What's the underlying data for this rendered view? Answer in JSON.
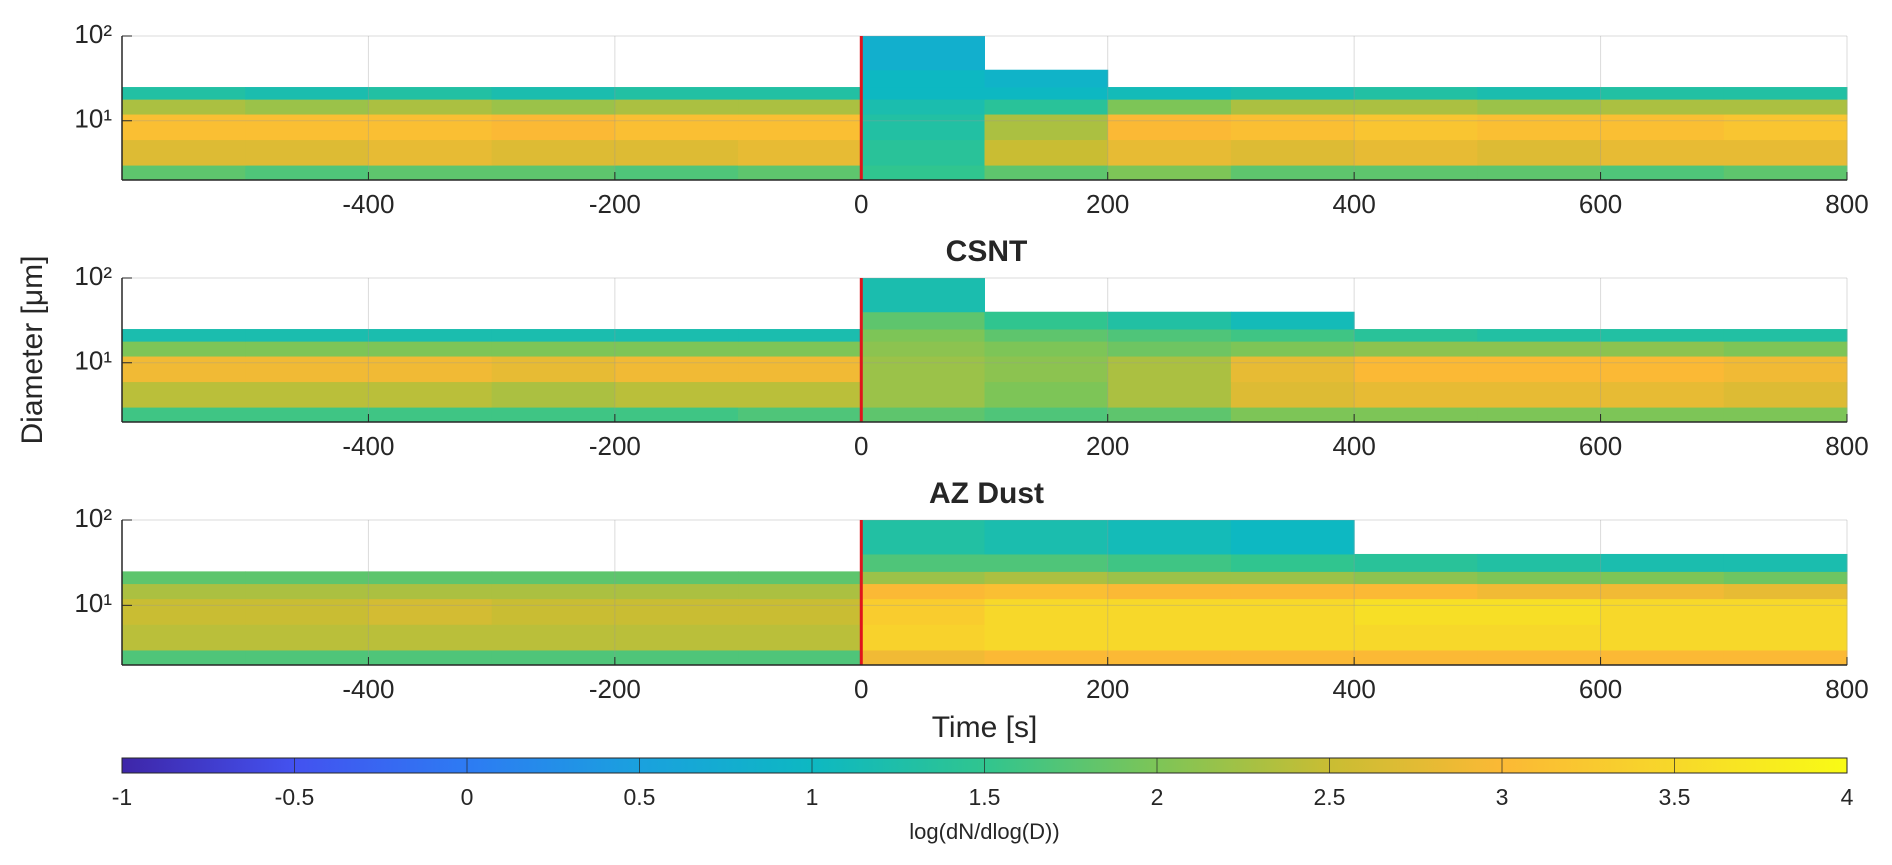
{
  "ylabel": "Diameter  [μm]",
  "colorbar": {
    "clim": [
      -1,
      4
    ],
    "ticks": [
      -1,
      -0.5,
      0,
      0.5,
      1,
      1.5,
      2,
      2.5,
      3,
      3.5,
      4
    ],
    "label": "log(dN/dlog(D))",
    "colors": [
      "#3e26a8",
      "#4352f0",
      "#2d7bf3",
      "#1aa1de",
      "#0db8c2",
      "#30c58f",
      "#7dc557",
      "#c9bd33",
      "#fbb935",
      "#f7d82a",
      "#f9fb15"
    ]
  },
  "chart_data": [
    {
      "type": "heatmap",
      "xlim": [
        -600,
        800
      ],
      "ylim": [
        2,
        100
      ],
      "ylog": true,
      "grid": true,
      "xticks": [
        -400,
        -200,
        0,
        200,
        400,
        600,
        800
      ],
      "yticks": [
        {
          "value": 10,
          "label": "10¹"
        },
        {
          "value": 100,
          "label": "10²"
        }
      ],
      "vline_x": 0,
      "vline_color": "#e0141c",
      "x_edges": [
        -600,
        -500,
        -400,
        -300,
        -200,
        -100,
        0,
        100,
        200,
        300,
        400,
        500,
        600,
        700,
        800
      ],
      "y_edges": [
        2,
        3,
        6,
        12,
        18,
        25,
        40,
        100
      ],
      "z": [
        [
          1.8,
          1.7,
          1.8,
          1.8,
          1.7,
          1.8,
          1.5,
          1.8,
          2.0,
          1.8,
          1.8,
          1.8,
          1.7,
          1.8
        ],
        [
          2.7,
          2.7,
          2.8,
          2.7,
          2.7,
          2.8,
          1.4,
          2.5,
          2.8,
          2.7,
          2.8,
          2.7,
          2.8,
          2.8
        ],
        [
          3.1,
          3.1,
          3.1,
          3.0,
          3.1,
          3.1,
          1.3,
          2.3,
          3.0,
          3.1,
          3.2,
          3.1,
          3.1,
          3.2
        ],
        [
          2.3,
          2.2,
          2.3,
          2.2,
          2.3,
          2.3,
          1.2,
          1.4,
          2.0,
          2.3,
          2.3,
          2.2,
          2.3,
          2.3
        ],
        [
          1.3,
          1.2,
          1.3,
          1.2,
          1.3,
          1.3,
          1.0,
          1.0,
          1.1,
          1.2,
          1.3,
          1.2,
          1.3,
          1.3
        ],
        [
          null,
          null,
          null,
          null,
          null,
          null,
          1.0,
          0.9,
          null,
          null,
          null,
          null,
          null,
          null
        ],
        [
          null,
          null,
          null,
          null,
          null,
          null,
          0.8,
          null,
          null,
          null,
          null,
          null,
          null,
          null
        ]
      ]
    },
    {
      "type": "heatmap",
      "title": "CSNT",
      "xlim": [
        -600,
        800
      ],
      "ylim": [
        2,
        100
      ],
      "ylog": true,
      "grid": true,
      "xticks": [
        -400,
        -200,
        0,
        200,
        400,
        600,
        800
      ],
      "yticks": [
        {
          "value": 10,
          "label": "10¹"
        },
        {
          "value": 100,
          "label": "10²"
        }
      ],
      "vline_x": 0,
      "vline_color": "#e0141c",
      "x_edges": [
        -600,
        -500,
        -400,
        -300,
        -200,
        -100,
        0,
        100,
        200,
        300,
        400,
        500,
        600,
        700,
        800
      ],
      "y_edges": [
        2,
        3,
        6,
        12,
        18,
        25,
        40,
        100
      ],
      "z": [
        [
          1.6,
          1.6,
          1.6,
          1.6,
          1.6,
          1.7,
          1.8,
          1.7,
          1.8,
          2.0,
          2.0,
          2.0,
          2.0,
          2.0
        ],
        [
          2.4,
          2.4,
          2.4,
          2.3,
          2.4,
          2.4,
          2.2,
          2.0,
          2.3,
          2.7,
          2.8,
          2.8,
          2.8,
          2.7
        ],
        [
          2.9,
          2.9,
          2.9,
          2.8,
          2.9,
          2.9,
          2.2,
          2.1,
          2.3,
          2.8,
          3.0,
          3.0,
          3.0,
          2.9
        ],
        [
          2.0,
          2.0,
          2.0,
          2.0,
          2.0,
          2.0,
          2.1,
          2.0,
          1.9,
          2.0,
          2.1,
          2.1,
          2.1,
          2.0
        ],
        [
          1.2,
          1.2,
          1.2,
          1.2,
          1.2,
          1.2,
          2.0,
          1.8,
          1.7,
          1.6,
          1.4,
          1.3,
          1.3,
          1.3
        ],
        [
          null,
          null,
          null,
          null,
          null,
          null,
          1.8,
          1.5,
          1.3,
          1.1,
          null,
          null,
          null,
          null
        ],
        [
          null,
          null,
          null,
          null,
          null,
          null,
          1.2,
          null,
          null,
          null,
          null,
          null,
          null,
          null
        ]
      ]
    },
    {
      "type": "heatmap",
      "title": "AZ Dust",
      "xlabel": "Time [s]",
      "xlim": [
        -600,
        800
      ],
      "ylim": [
        2,
        100
      ],
      "ylog": true,
      "grid": true,
      "xticks": [
        -400,
        -200,
        0,
        200,
        400,
        600,
        800
      ],
      "yticks": [
        {
          "value": 10,
          "label": "10¹"
        },
        {
          "value": 100,
          "label": "10²"
        }
      ],
      "vline_x": 0,
      "vline_color": "#e0141c",
      "x_edges": [
        -600,
        -500,
        -400,
        -300,
        -200,
        -100,
        0,
        100,
        200,
        300,
        400,
        500,
        600,
        700,
        800
      ],
      "y_edges": [
        2,
        3,
        6,
        12,
        18,
        25,
        40,
        100
      ],
      "z": [
        [
          1.7,
          1.7,
          1.7,
          1.7,
          1.7,
          1.7,
          2.9,
          3.0,
          3.0,
          3.0,
          3.0,
          3.0,
          3.0,
          3.0
        ],
        [
          2.4,
          2.4,
          2.4,
          2.4,
          2.4,
          2.4,
          3.4,
          3.5,
          3.5,
          3.5,
          3.5,
          3.5,
          3.5,
          3.5
        ],
        [
          2.5,
          2.5,
          2.6,
          2.5,
          2.5,
          2.5,
          3.3,
          3.5,
          3.5,
          3.5,
          3.6,
          3.6,
          3.5,
          3.5
        ],
        [
          2.3,
          2.3,
          2.3,
          2.3,
          2.3,
          2.3,
          3.0,
          3.1,
          3.0,
          3.0,
          3.0,
          2.9,
          2.9,
          2.8
        ],
        [
          1.8,
          1.8,
          1.8,
          1.8,
          1.8,
          1.8,
          2.2,
          2.3,
          2.2,
          2.2,
          2.1,
          2.0,
          2.0,
          1.9
        ],
        [
          null,
          null,
          null,
          null,
          null,
          null,
          1.7,
          1.7,
          1.6,
          1.5,
          1.4,
          1.3,
          1.2,
          1.2
        ],
        [
          null,
          null,
          null,
          null,
          null,
          null,
          1.3,
          1.2,
          1.1,
          1.0,
          null,
          null,
          null,
          null
        ]
      ]
    }
  ]
}
